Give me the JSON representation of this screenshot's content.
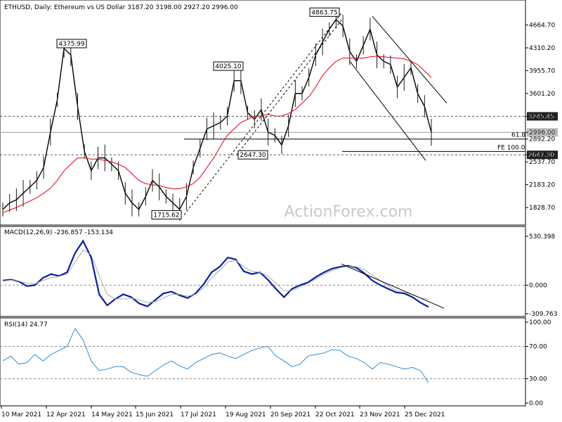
{
  "chart_data": [
    {
      "type": "line",
      "title": "ETHUSD, Daily: Ethereum vs US Dollar 3187.20 3198.00 2927.20 2996.00",
      "xlabel": "",
      "ylabel": "",
      "ylim": [
        1600,
        4900
      ],
      "x_ticks": [
        "10 Mar 2021",
        "12 Apr 2021",
        "14 May 2021",
        "15 Jun 2021",
        "17 Jul 2021",
        "19 Aug 2021",
        "20 Sep 2021",
        "22 Oct 2021",
        "23 Nov 2021",
        "25 Dec 2021"
      ],
      "y_ticks": [
        4664.7,
        4310.2,
        3955.7,
        3601.2,
        3245.45,
        2996.0,
        2892.2,
        2647.3,
        2537.7,
        2183.2,
        1828.7
      ],
      "series": [
        {
          "values": [
            1800,
            1900,
            1950,
            2050,
            2150,
            2250,
            2450,
            3000,
            3500,
            4300,
            4200,
            3400,
            2700,
            2400,
            2600,
            2600,
            2500,
            2400,
            2050,
            1900,
            1800,
            2000,
            2250,
            2150,
            2000,
            1900,
            1800,
            2000,
            2450,
            2750,
            3050,
            3100,
            3150,
            3250,
            3800,
            3800,
            3300,
            3200,
            3350,
            3000,
            2950,
            2800,
            3100,
            3600,
            3600,
            3850,
            4200,
            4400,
            4600,
            4750,
            4650,
            4250,
            4100,
            4350,
            4600,
            4200,
            4100,
            4050,
            3700,
            3850,
            4000,
            3600,
            3400,
            2996
          ]
        },
        {
          "values": [
            1750,
            1790,
            1830,
            1880,
            1930,
            1980,
            2050,
            2130,
            2250,
            2400,
            2500,
            2600,
            2600,
            2580,
            2580,
            2560,
            2540,
            2500,
            2450,
            2350,
            2250,
            2200,
            2180,
            2170,
            2140,
            2120,
            2120,
            2150,
            2200,
            2300,
            2450,
            2600,
            2780,
            2950,
            3050,
            3150,
            3200,
            3250,
            3250,
            3280,
            3250,
            3250,
            3290,
            3350,
            3450,
            3550,
            3700,
            3880,
            4000,
            4100,
            4150,
            4150,
            4150,
            4150,
            4170,
            4180,
            4170,
            4160,
            4150,
            4140,
            4100,
            4050,
            3950,
            3850
          ]
        }
      ],
      "levels": [
        {
          "value": 3245.45,
          "label": "3245.45"
        },
        {
          "value": 2996.0,
          "label": "2996.00"
        },
        {
          "value": 2892.2,
          "label": "61.8"
        },
        {
          "value": 2700.0,
          "label": "FE 100.0"
        },
        {
          "value": 2647.3,
          "label": "2647.30"
        }
      ],
      "annotations": [
        {
          "text": "4375.99",
          "value": 4375.99
        },
        {
          "text": "4025.10",
          "value": 4025.1
        },
        {
          "text": "4863.75",
          "value": 4863.75
        },
        {
          "text": "1715.62",
          "value": 1715.62
        },
        {
          "text": "2647.30",
          "value": 2647.3
        }
      ],
      "watermark": "ActionForex.com"
    },
    {
      "type": "line",
      "title": "MACD(12,26,9) -236.857 -153.134",
      "ylim": [
        -309.763,
        530.398
      ],
      "y_ticks": [
        530.398,
        0.0,
        -309.763
      ],
      "series": [
        {
          "values": [
            50,
            60,
            40,
            -10,
            0,
            80,
            120,
            100,
            140,
            350,
            480,
            300,
            -100,
            -220,
            -150,
            -100,
            -130,
            -200,
            -230,
            -160,
            -90,
            -70,
            -110,
            -140,
            -90,
            10,
            140,
            200,
            300,
            280,
            150,
            120,
            140,
            60,
            -40,
            -130,
            -40,
            0,
            30,
            90,
            140,
            180,
            200,
            210,
            190,
            130,
            50,
            0,
            -40,
            -80,
            -90,
            -130,
            -190,
            -237
          ]
        },
        {
          "values": [
            45,
            55,
            45,
            20,
            15,
            50,
            80,
            95,
            120,
            250,
            380,
            330,
            100,
            -100,
            -150,
            -150,
            -140,
            -160,
            -190,
            -180,
            -140,
            -100,
            -100,
            -120,
            -100,
            -30,
            80,
            160,
            250,
            270,
            200,
            150,
            140,
            100,
            20,
            -60,
            -60,
            -20,
            20,
            70,
            120,
            160,
            190,
            205,
            200,
            170,
            110,
            50,
            -10,
            -60,
            -80,
            -100,
            -140,
            -153
          ]
        }
      ]
    },
    {
      "type": "line",
      "title": "RSI(14) 24.77",
      "ylim": [
        0,
        100
      ],
      "y_ticks": [
        100.0,
        70.0,
        30.0,
        0.0
      ],
      "series": [
        {
          "values": [
            52,
            58,
            48,
            50,
            60,
            52,
            60,
            65,
            70,
            92,
            78,
            52,
            40,
            42,
            45,
            45,
            38,
            35,
            33,
            40,
            47,
            52,
            46,
            42,
            50,
            55,
            60,
            62,
            58,
            55,
            60,
            65,
            68,
            70,
            58,
            52,
            45,
            48,
            58,
            60,
            62,
            66,
            65,
            58,
            55,
            50,
            42,
            50,
            48,
            45,
            42,
            44,
            40,
            25
          ]
        }
      ]
    }
  ]
}
